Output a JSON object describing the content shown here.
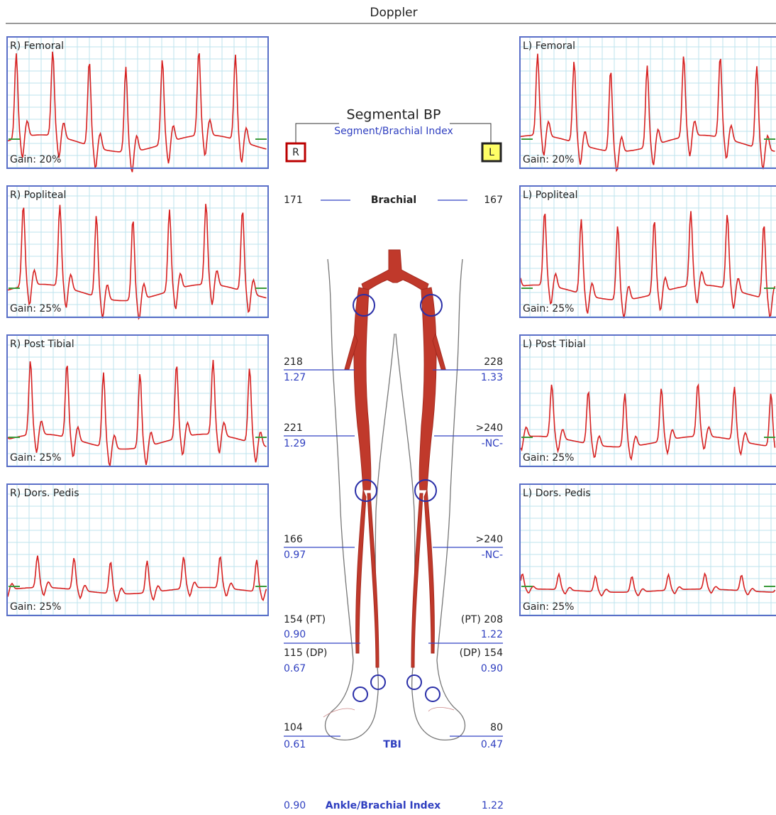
{
  "header": {
    "title": "Doppler"
  },
  "panels": {
    "right": [
      {
        "label": "R) Femoral",
        "gain": "Gain: 20%"
      },
      {
        "label": "R) Popliteal",
        "gain": "Gain: 25%"
      },
      {
        "label": "R) Post Tibial",
        "gain": "Gain: 25%"
      },
      {
        "label": "R) Dors. Pedis",
        "gain": "Gain: 25%"
      }
    ],
    "left": [
      {
        "label": "L) Femoral",
        "gain": "Gain: 20%"
      },
      {
        "label": "L) Popliteal",
        "gain": "Gain: 25%"
      },
      {
        "label": "L) Post Tibial",
        "gain": "Gain: 25%"
      },
      {
        "label": "L) Dors. Pedis",
        "gain": "Gain: 25%"
      }
    ]
  },
  "segmental": {
    "title": "Segmental BP",
    "subtitle": "Segment/Brachial Index",
    "right_marker": "R",
    "left_marker": "L",
    "brachial": {
      "label": "Brachial",
      "right": "171",
      "left": "167"
    },
    "rows": [
      {
        "right_pressure": "218",
        "right_index": "1.27",
        "left_pressure": "228",
        "left_index": "1.33"
      },
      {
        "right_pressure": "221",
        "right_index": "1.29",
        "left_pressure": ">240",
        "left_index": "-NC-"
      },
      {
        "right_pressure": "166",
        "right_index": "0.97",
        "left_pressure": ">240",
        "left_index": "-NC-"
      }
    ],
    "ankle": {
      "right_pt": "154 (PT)",
      "right_pt_index": "0.90",
      "right_dp": "115 (DP)",
      "right_dp_index": "0.67",
      "left_pt": "(PT) 208",
      "left_pt_index": "1.22",
      "left_dp": "(DP) 154",
      "left_dp_index": "0.90"
    },
    "toe": {
      "label": "TBI",
      "right": "104",
      "right_index": "0.61",
      "left": "80",
      "left_index": "0.47"
    },
    "abi": {
      "label": "Ankle/Brachial Index",
      "right": "0.90",
      "left": "1.22"
    }
  }
}
